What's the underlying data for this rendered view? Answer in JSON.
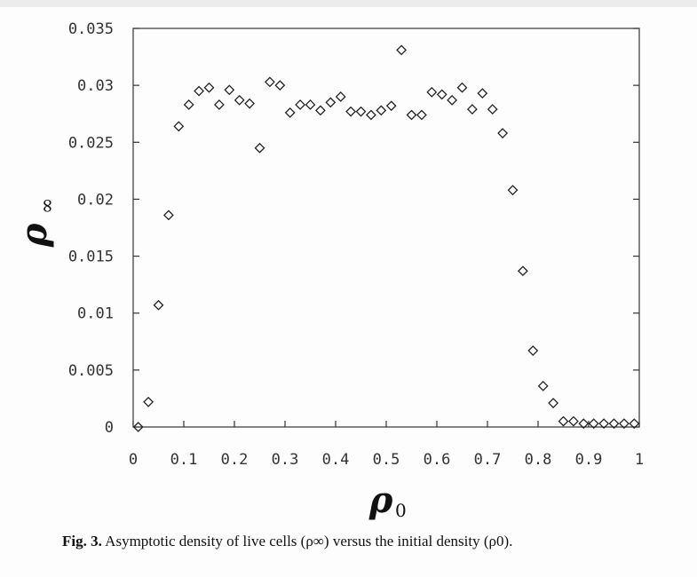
{
  "chart_data": {
    "type": "scatter",
    "marker": "diamond",
    "xlabel": "ρ",
    "xlabel_sub": "0",
    "ylabel": "ρ",
    "ylabel_sub": "∞",
    "xlim": [
      0,
      1
    ],
    "ylim": [
      0,
      0.035
    ],
    "xticks": [
      "0",
      "0.1",
      "0.2",
      "0.3",
      "0.4",
      "0.5",
      "0.6",
      "0.7",
      "0.8",
      "0.9",
      "1"
    ],
    "yticks": [
      "0",
      "0.005",
      "0.01",
      "0.015",
      "0.02",
      "0.025",
      "0.03",
      "0.035"
    ],
    "grid": false,
    "series": [
      {
        "points": [
          [
            0.01,
            0.0
          ],
          [
            0.03,
            0.0022
          ],
          [
            0.05,
            0.0107
          ],
          [
            0.07,
            0.0186
          ],
          [
            0.09,
            0.0264
          ],
          [
            0.11,
            0.0283
          ],
          [
            0.13,
            0.0295
          ],
          [
            0.15,
            0.0298
          ],
          [
            0.17,
            0.0283
          ],
          [
            0.19,
            0.0296
          ],
          [
            0.21,
            0.0287
          ],
          [
            0.23,
            0.0284
          ],
          [
            0.25,
            0.0245
          ],
          [
            0.27,
            0.0303
          ],
          [
            0.29,
            0.03
          ],
          [
            0.31,
            0.0276
          ],
          [
            0.33,
            0.0283
          ],
          [
            0.35,
            0.0283
          ],
          [
            0.37,
            0.0278
          ],
          [
            0.39,
            0.0285
          ],
          [
            0.41,
            0.029
          ],
          [
            0.43,
            0.0277
          ],
          [
            0.45,
            0.0277
          ],
          [
            0.47,
            0.0274
          ],
          [
            0.49,
            0.0278
          ],
          [
            0.51,
            0.0282
          ],
          [
            0.53,
            0.0331
          ],
          [
            0.55,
            0.0274
          ],
          [
            0.57,
            0.0274
          ],
          [
            0.59,
            0.0294
          ],
          [
            0.61,
            0.0292
          ],
          [
            0.63,
            0.0287
          ],
          [
            0.65,
            0.0298
          ],
          [
            0.67,
            0.0279
          ],
          [
            0.69,
            0.0293
          ],
          [
            0.71,
            0.0279
          ],
          [
            0.73,
            0.0258
          ],
          [
            0.75,
            0.0208
          ],
          [
            0.77,
            0.0137
          ],
          [
            0.79,
            0.0067
          ],
          [
            0.81,
            0.0036
          ],
          [
            0.83,
            0.0021
          ],
          [
            0.85,
            0.0005
          ],
          [
            0.87,
            0.0005
          ],
          [
            0.89,
            0.0003
          ],
          [
            0.91,
            0.0003
          ],
          [
            0.93,
            0.0003
          ],
          [
            0.95,
            0.0003
          ],
          [
            0.97,
            0.0003
          ],
          [
            0.99,
            0.0003
          ]
        ]
      }
    ]
  },
  "caption": {
    "label": "Fig. 3.",
    "text": "Asymptotic density of live cells (ρ∞) versus the initial density (ρ0)."
  }
}
